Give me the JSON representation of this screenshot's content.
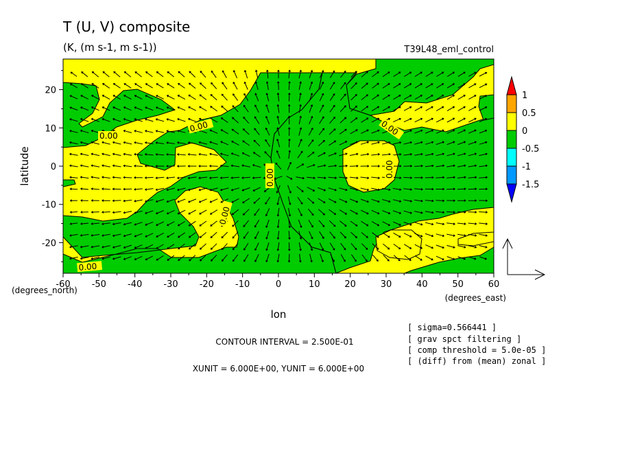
{
  "chart_data": {
    "type": "heatmap",
    "title": "T (U, V) composite",
    "subtitle": "(K, (m s-1, m s-1))",
    "experiment": "T39L48_eml_control",
    "xlabel": "lon",
    "ylabel": "latitude",
    "x_unit_label": "(degrees_east)",
    "y_unit_label": "(degrees_north)",
    "xlim": [
      -60,
      60
    ],
    "ylim": [
      -28,
      28
    ],
    "x_ticks": [
      "-60",
      "-50",
      "-40",
      "-30",
      "-20",
      "-10",
      "0",
      "10",
      "20",
      "30",
      "40",
      "50",
      "60"
    ],
    "y_ticks": [
      "20",
      "10",
      "0",
      "-10",
      "-20"
    ],
    "x_tick_values": [
      -60,
      -50,
      -40,
      -30,
      -20,
      -10,
      0,
      10,
      20,
      30,
      40,
      50,
      60
    ],
    "y_tick_values": [
      20,
      10,
      0,
      -10,
      -20
    ],
    "colorbar": {
      "levels": [
        "1",
        "0.5",
        "0",
        "-0.5",
        "-1",
        "-1.5"
      ],
      "colors": [
        "#ff0000",
        "#ffa500",
        "#ffff00",
        "#00cc00",
        "#00ffff",
        "#0099ff",
        "#0000ff"
      ]
    },
    "contour_labels": [
      "0.00",
      "0.00",
      "0.00",
      "0.00",
      "0.00",
      "0.00",
      "0.00"
    ],
    "contour_interval": "CONTOUR INTERVAL = 2.500E-01",
    "vector_units": "XUNIT = 6.000E+00, YUNIT = 6.000E+00",
    "notes": [
      "[ sigma=0.566441 ]",
      "[ grav spct filtering ]",
      "[ comp threshold = 5.0e-05 ]",
      "[ (diff) from (mean) zonal ]"
    ],
    "fill_colors": {
      "positive": "#ffff00",
      "negative": "#00cc00"
    }
  }
}
